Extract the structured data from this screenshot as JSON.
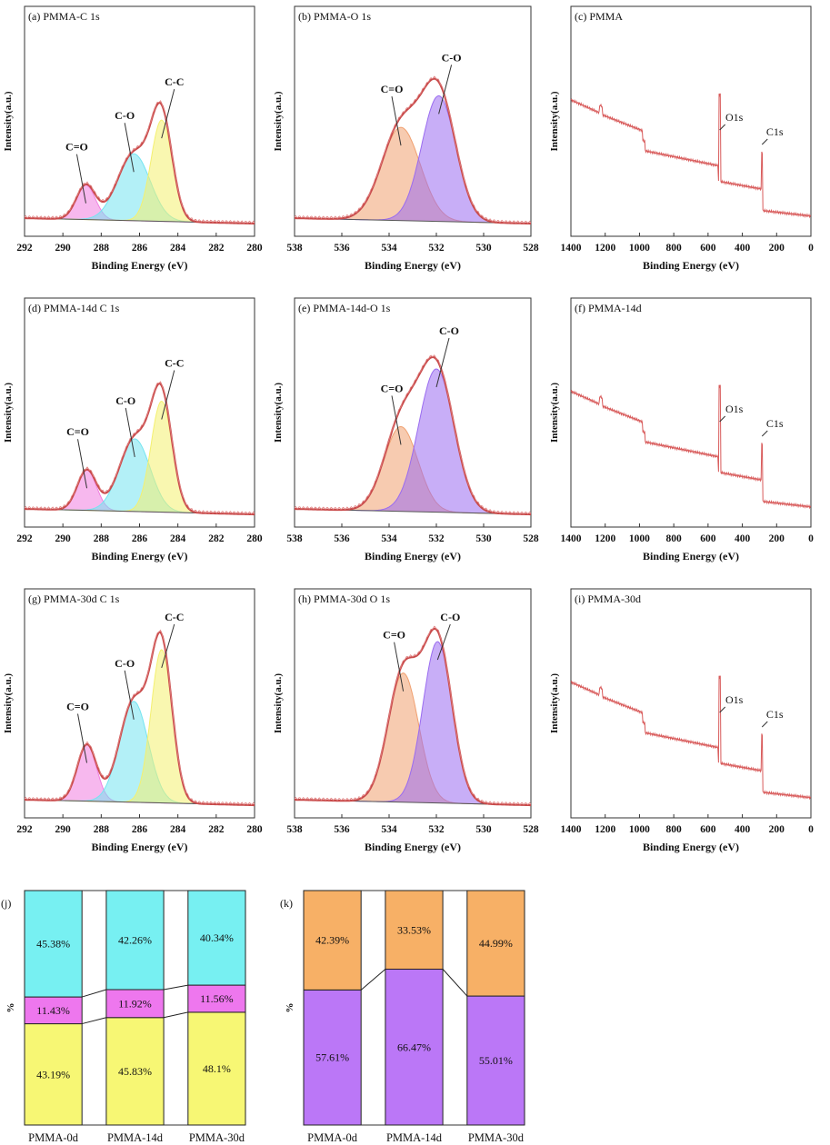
{
  "chart_data": [
    {
      "panel": "(a) PMMA-C 1s",
      "type": "line",
      "xlabel": "Binding Energy (eV)",
      "ylabel": "Intensity(a.u.)",
      "xlim": [
        292,
        280
      ],
      "xticks": [
        292,
        290,
        288,
        286,
        284,
        282,
        280
      ],
      "peaks": [
        {
          "name": "C=O",
          "center": 288.8,
          "height": 0.17,
          "width": 0.5,
          "color": "#f07ee0"
        },
        {
          "name": "C-O",
          "center": 286.3,
          "height": 0.33,
          "width": 0.85,
          "color": "#74e4f0"
        },
        {
          "name": "C-C",
          "center": 284.85,
          "height": 0.5,
          "width": 0.55,
          "color": "#f4f070"
        }
      ]
    },
    {
      "panel": "(b) PMMA-O 1s",
      "type": "line",
      "xlabel": "Binding Energy (eV)",
      "ylabel": "Intensity(a.u.)",
      "xlim": [
        538,
        528
      ],
      "xticks": [
        538,
        536,
        534,
        532,
        530,
        528
      ],
      "peaks": [
        {
          "name": "C=O",
          "center": 533.5,
          "height": 0.46,
          "width": 0.82,
          "color": "#f0a070"
        },
        {
          "name": "C-O",
          "center": 531.9,
          "height": 0.62,
          "width": 0.72,
          "color": "#9a6cf0"
        }
      ]
    },
    {
      "panel": "(c) PMMA",
      "type": "line",
      "xlabel": "Binding Energy (eV)",
      "ylabel": "Intensity(a.u.)",
      "xlim": [
        1400,
        0
      ],
      "xticks": [
        1400,
        1200,
        1000,
        800,
        600,
        400,
        200,
        0
      ],
      "annotations": [
        "O1s",
        "C1s"
      ]
    },
    {
      "panel": "(d) PMMA-14d C 1s",
      "type": "line",
      "xlabel": "Binding Energy (eV)",
      "ylabel": "Intensity(a.u.)",
      "xlim": [
        292,
        280
      ],
      "xticks": [
        292,
        290,
        288,
        286,
        284,
        282,
        280
      ],
      "peaks": [
        {
          "name": "C=O",
          "center": 288.75,
          "height": 0.2,
          "width": 0.5,
          "color": "#f07ee0"
        },
        {
          "name": "C-O",
          "center": 286.25,
          "height": 0.36,
          "width": 0.8,
          "color": "#74e4f0"
        },
        {
          "name": "C-C",
          "center": 284.85,
          "height": 0.55,
          "width": 0.55,
          "color": "#f4f070"
        }
      ]
    },
    {
      "panel": "(e) PMMA-14d-O 1s",
      "type": "line",
      "xlabel": "Binding Energy (eV)",
      "ylabel": "Intensity(a.u.)",
      "xlim": [
        538,
        528
      ],
      "xticks": [
        538,
        536,
        534,
        532,
        530,
        528
      ],
      "peaks": [
        {
          "name": "C=O",
          "center": 533.5,
          "height": 0.42,
          "width": 0.72,
          "color": "#f0a070"
        },
        {
          "name": "C-O",
          "center": 532.0,
          "height": 0.71,
          "width": 0.75,
          "color": "#9a6cf0"
        }
      ]
    },
    {
      "panel": "(f) PMMA-14d",
      "type": "line",
      "xlabel": "Binding Energy (eV)",
      "ylabel": "Intensity(a.u.)",
      "xlim": [
        1400,
        0
      ],
      "xticks": [
        1400,
        1200,
        1000,
        800,
        600,
        400,
        200,
        0
      ],
      "annotations": [
        "O1s",
        "C1s"
      ]
    },
    {
      "panel": "(g) PMMA-30d C 1s",
      "type": "line",
      "xlabel": "Binding Energy (eV)",
      "ylabel": "Intensity(a.u.)",
      "xlim": [
        292,
        280
      ],
      "xticks": [
        292,
        290,
        288,
        286,
        284,
        282,
        280
      ],
      "peaks": [
        {
          "name": "C=O",
          "center": 288.75,
          "height": 0.28,
          "width": 0.5,
          "color": "#f07ee0"
        },
        {
          "name": "C-O",
          "center": 286.3,
          "height": 0.5,
          "width": 0.75,
          "color": "#74e4f0"
        },
        {
          "name": "C-C",
          "center": 284.85,
          "height": 0.76,
          "width": 0.55,
          "color": "#f4f070"
        }
      ]
    },
    {
      "panel": "(h) PMMA-30d O 1s",
      "type": "line",
      "xlabel": "Binding Energy (eV)",
      "ylabel": "Intensity(a.u.)",
      "xlim": [
        538,
        528
      ],
      "xticks": [
        538,
        536,
        534,
        532,
        530,
        528
      ],
      "peaks": [
        {
          "name": "C=O",
          "center": 533.4,
          "height": 0.64,
          "width": 0.65,
          "color": "#f0a070"
        },
        {
          "name": "C-O",
          "center": 531.95,
          "height": 0.8,
          "width": 0.62,
          "color": "#9a6cf0"
        }
      ]
    },
    {
      "panel": "(i) PMMA-30d",
      "type": "line",
      "xlabel": "Binding Energy (eV)",
      "ylabel": "Intensity(a.u.)",
      "xlim": [
        1400,
        0
      ],
      "xticks": [
        1400,
        1200,
        1000,
        800,
        600,
        400,
        200,
        0
      ],
      "annotations": [
        "O1s",
        "C1s"
      ]
    },
    {
      "panel": "(j)",
      "type": "bar",
      "stacked": true,
      "ylabel": "%",
      "categories": [
        "PMMA-0d",
        "PMMA-14d",
        "PMMA-30d"
      ],
      "series": [
        {
          "values": [
            43.19,
            45.83,
            48.1
          ],
          "labels": [
            "43.19%",
            "45.83%",
            "48.1%"
          ],
          "color": "#f7f774"
        },
        {
          "values": [
            11.43,
            11.92,
            11.56
          ],
          "labels": [
            "11.43%",
            "11.92%",
            "11.56%"
          ],
          "color": "#ee77ee"
        },
        {
          "values": [
            45.38,
            42.26,
            40.34
          ],
          "labels": [
            "45.38%",
            "42.26%",
            "40.34%"
          ],
          "color": "#77f0f2"
        }
      ]
    },
    {
      "panel": "(k)",
      "type": "bar",
      "stacked": true,
      "ylabel": "%",
      "categories": [
        "PMMA-0d",
        "PMMA-14d",
        "PMMA-30d"
      ],
      "series": [
        {
          "values": [
            57.61,
            66.47,
            55.01
          ],
          "labels": [
            "57.61%",
            "66.47%",
            "55.01%"
          ],
          "color": "#bb77f7"
        },
        {
          "values": [
            42.39,
            33.53,
            44.99
          ],
          "labels": [
            "42.39%",
            "33.53%",
            "44.99%"
          ],
          "color": "#f7b066"
        }
      ]
    }
  ]
}
